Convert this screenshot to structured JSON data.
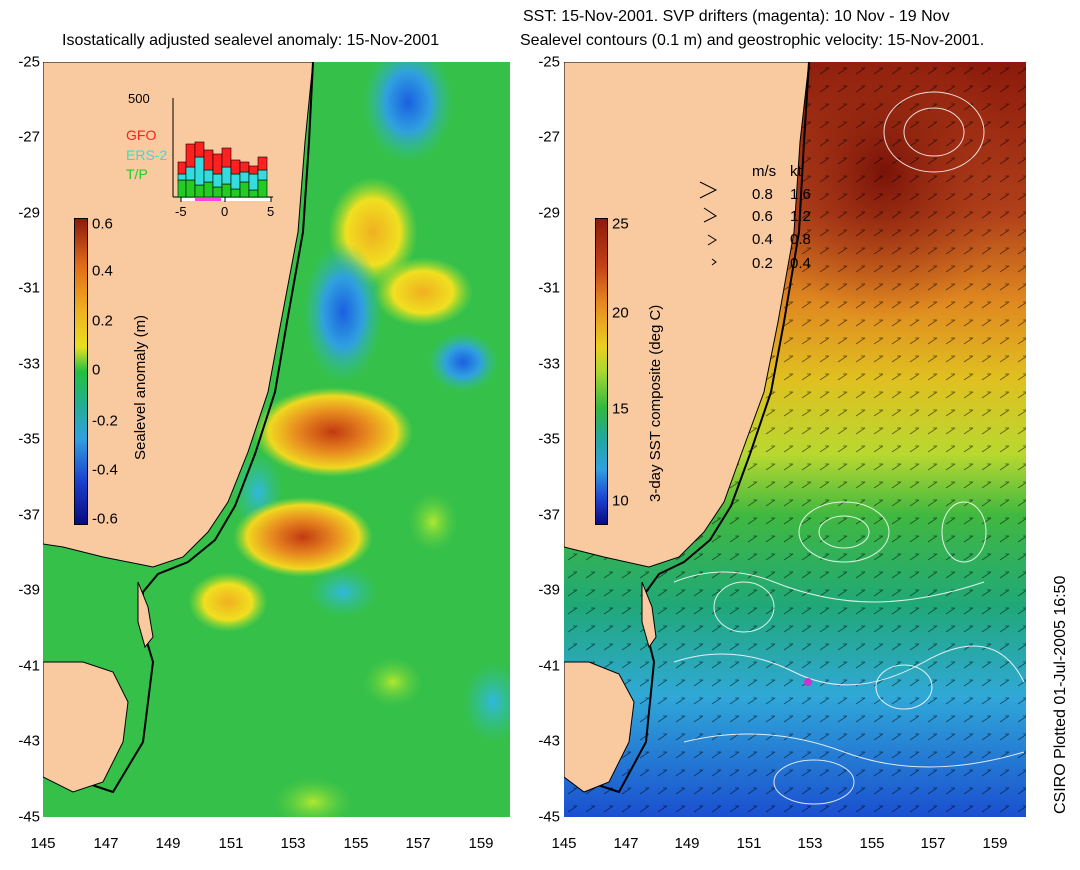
{
  "left_panel": {
    "title": "Isostatically adjusted sealevel anomaly: 15-Nov-2001",
    "colorbar_label": "Sealevel anomaly (m)",
    "colorbar_ticks": [
      "0.6",
      "0.4",
      "0.2",
      "0",
      "-0.2",
      "-0.4",
      "-0.6"
    ],
    "inset": {
      "y_top": "500",
      "x_ticks": [
        "-5",
        "0",
        "5"
      ],
      "legend": [
        {
          "label": "GFO",
          "color": "#ff2020"
        },
        {
          "label": "ERS-2",
          "color": "#33dddd"
        },
        {
          "label": "T/P",
          "color": "#22cc22"
        }
      ]
    }
  },
  "right_panel": {
    "title_line1": "SST: 15-Nov-2001. SVP drifters (magenta): 10 Nov - 19 Nov",
    "title_line2": "Sealevel contours (0.1 m) and geostrophic velocity: 15-Nov-2001.",
    "colorbar_label": "3-day SST composite (deg C)",
    "colorbar_ticks": [
      "25",
      "20",
      "15",
      "10"
    ],
    "speed_legend": {
      "header_ms": "m/s",
      "header_kt": "kt",
      "rows": [
        {
          "ms": "0.8",
          "kt": "1.6"
        },
        {
          "ms": "0.6",
          "kt": "1.2"
        },
        {
          "ms": "0.4",
          "kt": "0.8"
        },
        {
          "ms": "0.2",
          "kt": "0.4"
        }
      ]
    }
  },
  "axes": {
    "x_ticks": [
      "145",
      "147",
      "149",
      "151",
      "153",
      "155",
      "157",
      "159"
    ],
    "y_ticks": [
      "-25",
      "-27",
      "-29",
      "-31",
      "-33",
      "-35",
      "-37",
      "-39",
      "-41",
      "-43",
      "-45"
    ]
  },
  "credit": "CSIRO Plotted 01-Jul-2005 16:50",
  "colors": {
    "land": "#f9c9a0",
    "ocean_left": "#2fbf4a",
    "sst_warm": "#8c1a0c",
    "sst_cool": "#1a4fd0"
  }
}
